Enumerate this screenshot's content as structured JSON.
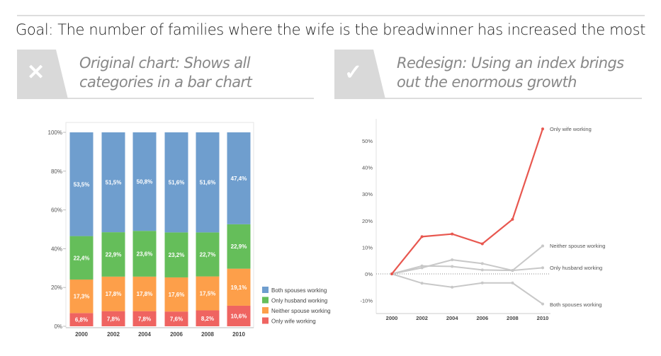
{
  "header": {
    "goal": "Goal: The number of families where the wife is the breadwinner has increased the most"
  },
  "left_panel": {
    "icon": "x-icon",
    "symbol": "✕",
    "line1": "Original chart: Shows all",
    "line2": "categories in a bar chart"
  },
  "right_panel": {
    "icon": "check-icon",
    "symbol": "✓",
    "line1": "Redesign: Using an index brings",
    "line2": "out the enormous growth"
  },
  "chart_data": [
    {
      "type": "bar",
      "stacked": true,
      "title": "",
      "categories": [
        "2000",
        "2002",
        "2004",
        "2006",
        "2008",
        "2010"
      ],
      "yticks": [
        "0%",
        "20%",
        "40%",
        "60%",
        "80%",
        "100%"
      ],
      "ylim": [
        0,
        100
      ],
      "series": [
        {
          "name": "Only wife working",
          "color": "#ef6461",
          "values": [
            6.8,
            7.8,
            7.8,
            7.6,
            8.2,
            10.6
          ],
          "labels": [
            "6,8%",
            "7,8%",
            "7,8%",
            "7,6%",
            "8,2%",
            "10,6%"
          ]
        },
        {
          "name": "Neither spouse working",
          "color": "#fd9f4a",
          "values": [
            17.3,
            17.8,
            17.8,
            17.6,
            17.5,
            19.1
          ],
          "labels": [
            "17,3%",
            "17,8%",
            "17,8%",
            "17,6%",
            "17,5%",
            "19,1%"
          ]
        },
        {
          "name": "Only husband working",
          "color": "#65be5a",
          "values": [
            22.4,
            22.9,
            23.6,
            23.2,
            22.7,
            22.9
          ],
          "labels": [
            "22,4%",
            "22,9%",
            "23,6%",
            "23,2%",
            "22,7%",
            "22,9%"
          ]
        },
        {
          "name": "Both spouses working",
          "color": "#6f9ece",
          "values": [
            53.5,
            51.5,
            50.8,
            51.6,
            51.6,
            47.4
          ],
          "labels": [
            "53,5%",
            "51,5%",
            "50,8%",
            "51,6%",
            "51,6%",
            "47,4%"
          ]
        }
      ],
      "legend": [
        "Both spouses working",
        "Only husband working",
        "Neither spouse working",
        "Only wife working"
      ],
      "legend_placement": "bottom-right"
    },
    {
      "type": "line",
      "title": "",
      "x": [
        "2000",
        "2002",
        "2004",
        "2006",
        "2008",
        "2010"
      ],
      "yticks": [
        "-10%",
        "0%",
        "10%",
        "20%",
        "30%",
        "40%",
        "50%"
      ],
      "ylim": [
        -15,
        58
      ],
      "series": [
        {
          "name": "Only wife working",
          "color": "#e8574f",
          "values": [
            0,
            14,
            15,
            11.3,
            20.5,
            54.5
          ]
        },
        {
          "name": "Neither spouse working",
          "color": "#c8c8c8",
          "values": [
            0,
            2.3,
            5.3,
            3.9,
            1.3,
            10.5
          ]
        },
        {
          "name": "Only husband working",
          "color": "#c8c8c8",
          "values": [
            0,
            3,
            2.8,
            1.5,
            1.3,
            2.3
          ]
        },
        {
          "name": "Both spouses working",
          "color": "#c8c8c8",
          "values": [
            0,
            -3.5,
            -5,
            -3.4,
            -3.4,
            -11.3
          ]
        }
      ],
      "legend_placement": "end-of-line labels"
    }
  ]
}
